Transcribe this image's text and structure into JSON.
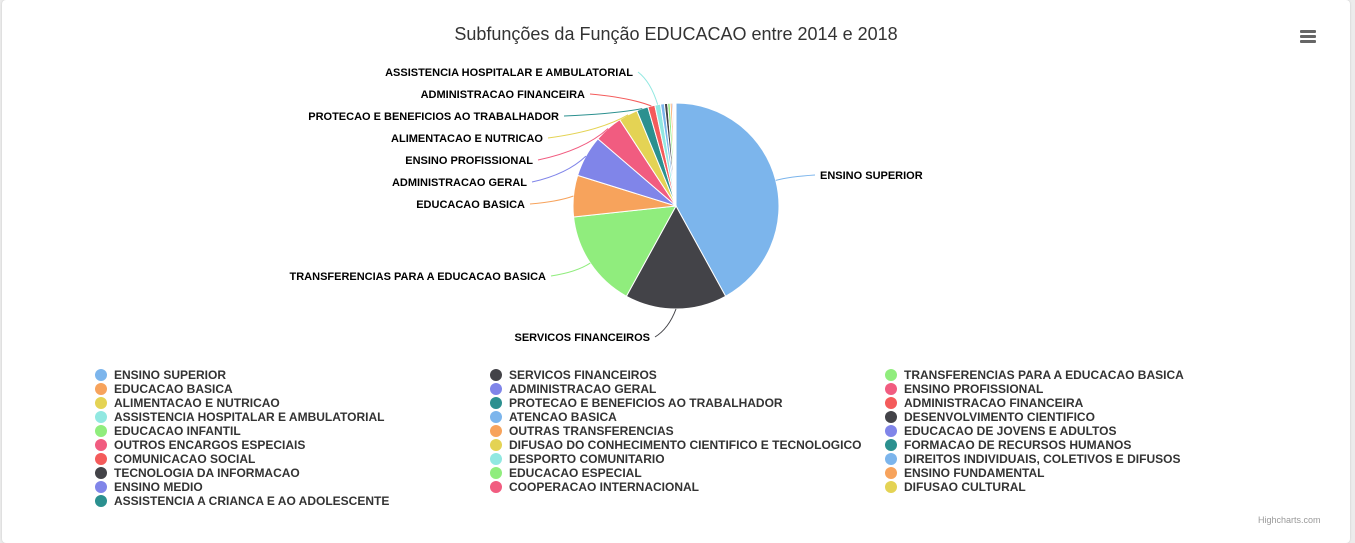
{
  "chart_data": {
    "type": "pie",
    "title": "Subfunções da Função EDUCACAO entre 2014 e 2018",
    "slices": [
      {
        "name": "ENSINO SUPERIOR",
        "value": 42.0,
        "color": "#7cb5ec"
      },
      {
        "name": "SERVICOS FINANCEIROS",
        "value": 16.0,
        "color": "#434348"
      },
      {
        "name": "TRANSFERENCIAS PARA A EDUCACAO BASICA",
        "value": 15.3,
        "color": "#90ed7d"
      },
      {
        "name": "EDUCACAO BASICA",
        "value": 6.5,
        "color": "#f7a35c"
      },
      {
        "name": "ADMINISTRACAO GERAL",
        "value": 6.5,
        "color": "#8085e9"
      },
      {
        "name": "ENSINO PROFISSIONAL",
        "value": 4.5,
        "color": "#f15c80"
      },
      {
        "name": "ALIMENTACAO E NUTRICAO",
        "value": 3.0,
        "color": "#e4d354"
      },
      {
        "name": "PROTECAO E BENEFICIOS AO TRABALHADOR",
        "value": 1.8,
        "color": "#2b908f"
      },
      {
        "name": "ADMINISTRACAO FINANCEIRA",
        "value": 1.1,
        "color": "#f45b5b"
      },
      {
        "name": "ASSISTENCIA HOSPITALAR E AMBULATORIAL",
        "value": 0.9,
        "color": "#91e8e1"
      },
      {
        "name": "ATENCAO BASICA",
        "value": 0.6,
        "color": "#7cb5ec"
      },
      {
        "name": "DESENVOLVIMENTO CIENTIFICO",
        "value": 0.5,
        "color": "#434348"
      },
      {
        "name": "EDUCACAO INFANTIL",
        "value": 0.4,
        "color": "#90ed7d"
      },
      {
        "name": "OUTRAS TRANSFERENCIAS",
        "value": 0.3,
        "color": "#f7a35c"
      },
      {
        "name": "EDUCACAO DE JOVENS E ADULTOS",
        "value": 0.2,
        "color": "#8085e9"
      },
      {
        "name": "OUTROS ENCARGOS ESPECIAIS",
        "value": 0.1,
        "color": "#f15c80"
      },
      {
        "name": "DIFUSAO DO CONHECIMENTO CIENTIFICO E TECNOLOGICO",
        "value": 0.05,
        "color": "#e4d354"
      },
      {
        "name": "FORMACAO DE RECURSOS HUMANOS",
        "value": 0.05,
        "color": "#2b908f"
      },
      {
        "name": "COMUNICACAO SOCIAL",
        "value": 0.04,
        "color": "#f45b5b"
      },
      {
        "name": "DESPORTO COMUNITARIO",
        "value": 0.03,
        "color": "#91e8e1"
      },
      {
        "name": "DIREITOS INDIVIDUAIS, COLETIVOS E DIFUSOS",
        "value": 0.03,
        "color": "#7cb5ec"
      },
      {
        "name": "TECNOLOGIA DA INFORMACAO",
        "value": 0.02,
        "color": "#434348"
      },
      {
        "name": "EDUCACAO ESPECIAL",
        "value": 0.02,
        "color": "#90ed7d"
      },
      {
        "name": "ENSINO FUNDAMENTAL",
        "value": 0.02,
        "color": "#f7a35c"
      },
      {
        "name": "ENSINO MEDIO",
        "value": 0.01,
        "color": "#8085e9"
      },
      {
        "name": "COOPERACAO INTERNACIONAL",
        "value": 0.01,
        "color": "#f15c80"
      },
      {
        "name": "DIFUSAO CULTURAL",
        "value": 0.01,
        "color": "#e4d354"
      },
      {
        "name": "ASSISTENCIA A CRIANCA E AO ADOLESCENTE",
        "value": 0.01,
        "color": "#2b908f"
      }
    ],
    "labeled_slices": 10,
    "legend_position": "bottom"
  },
  "credits": "Highcharts.com",
  "menu_icon": "hamburger-menu-icon"
}
